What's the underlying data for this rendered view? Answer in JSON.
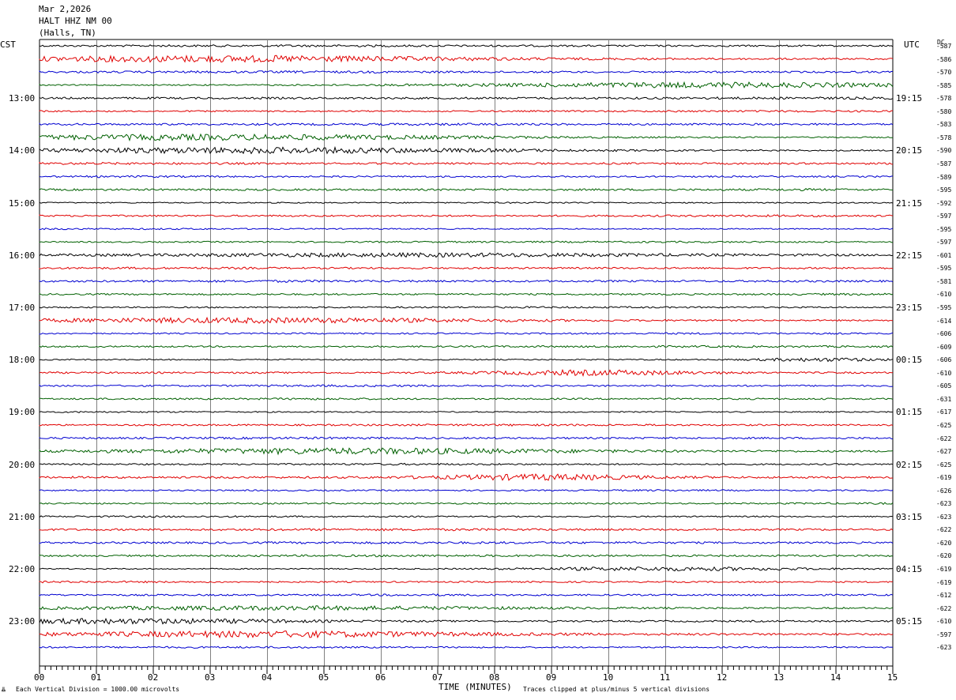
{
  "header": {
    "date": "Mar 2,2026",
    "station": "HALT HHZ NM 00",
    "location": "(Halls, TN)"
  },
  "left_tz": "CST",
  "right_tz": "UTC",
  "dc_label": "DC",
  "footer": {
    "scale_note": "Each Vertical Division = 1000.00 microvolts",
    "clip_note": "Traces clipped at plus/minus 5 vertical divisions",
    "corner_mark": "╩"
  },
  "colors": {
    "trace_cycle": [
      "#000000",
      "#e00000",
      "#0000d0",
      "#006000"
    ],
    "grid": "#808080"
  },
  "chart_data": {
    "type": "line",
    "title": "",
    "xlabel": "TIME (MINUTES)",
    "xlim": [
      0,
      15
    ],
    "x_ticks": [
      "00",
      "01",
      "02",
      "03",
      "04",
      "05",
      "06",
      "07",
      "08",
      "09",
      "10",
      "11",
      "12",
      "13",
      "14",
      "15"
    ],
    "cst_hour_labels": [
      "13:00",
      "14:00",
      "15:00",
      "16:00",
      "17:00",
      "18:00",
      "19:00",
      "20:00",
      "21:00",
      "22:00",
      "23:00"
    ],
    "utc_hour_labels": [
      "19:15",
      "20:15",
      "21:15",
      "22:15",
      "23:15",
      "00:15",
      "01:15",
      "02:15",
      "03:15",
      "04:15",
      "05:15"
    ],
    "dc_offsets": [
      "-587",
      "-586",
      "-570",
      "-585",
      "-578",
      "-580",
      "-583",
      "-578",
      "-590",
      "-587",
      "-589",
      "-595",
      "-592",
      "-597",
      "-595",
      "-597",
      "-601",
      "-595",
      "-581",
      "-610",
      "-595",
      "-614",
      "-606",
      "-609",
      "-606",
      "-610",
      "-605",
      "-631",
      "-617",
      "-625",
      "-622",
      "-627",
      "-625",
      "-619",
      "-626",
      "-623",
      "-623",
      "-622",
      "-620",
      "-620",
      "-619",
      "-619",
      "-612",
      "-622",
      "-610",
      "-597",
      "-623"
    ]
  }
}
